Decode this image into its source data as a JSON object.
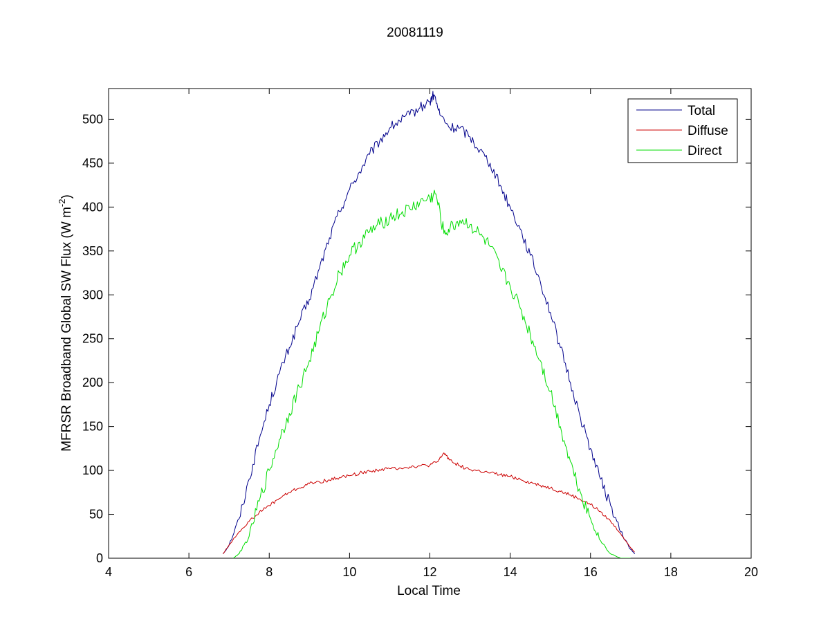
{
  "chart_data": {
    "type": "line",
    "title": "20081119",
    "xlabel": "Local Time",
    "ylabel": {
      "main": "MFRSR Broadband Global SW Flux (W m",
      "superscript": "-2",
      "close": ")"
    },
    "xlim": [
      4,
      20
    ],
    "ylim": [
      0,
      535
    ],
    "xticks": [
      4,
      6,
      8,
      10,
      12,
      14,
      16,
      18,
      20
    ],
    "yticks": [
      0,
      50,
      100,
      150,
      200,
      250,
      300,
      350,
      400,
      450,
      500
    ],
    "grid": false,
    "legend_position": "top-right",
    "series": [
      {
        "name": "Total",
        "color": "#00008b",
        "x": [
          6.85,
          7.0,
          7.25,
          7.5,
          7.75,
          8.0,
          8.25,
          8.5,
          8.75,
          9.0,
          9.25,
          9.5,
          9.75,
          10.0,
          10.25,
          10.5,
          10.75,
          11.0,
          11.25,
          11.5,
          11.75,
          12.0,
          12.1,
          12.25,
          12.5,
          12.75,
          13.0,
          13.25,
          13.5,
          13.75,
          14.0,
          14.25,
          14.5,
          14.75,
          15.0,
          15.25,
          15.5,
          15.75,
          16.0,
          16.25,
          16.5,
          16.75,
          17.0,
          17.1
        ],
        "y": [
          5,
          15,
          45,
          90,
          135,
          175,
          210,
          240,
          270,
          295,
          330,
          365,
          395,
          420,
          440,
          460,
          475,
          490,
          498,
          505,
          513,
          520,
          528,
          505,
          490,
          490,
          480,
          465,
          450,
          425,
          400,
          375,
          345,
          315,
          280,
          240,
          200,
          160,
          125,
          90,
          60,
          30,
          10,
          5
        ],
        "jitter": 6
      },
      {
        "name": "Diffuse",
        "color": "#cc0000",
        "x": [
          6.85,
          7.0,
          7.25,
          7.5,
          7.75,
          8.0,
          8.25,
          8.5,
          8.75,
          9.0,
          9.25,
          9.5,
          9.75,
          10.0,
          10.25,
          10.5,
          10.75,
          11.0,
          11.25,
          11.5,
          11.75,
          12.0,
          12.2,
          12.35,
          12.5,
          12.75,
          13.0,
          13.25,
          13.5,
          13.75,
          14.0,
          14.25,
          14.5,
          14.75,
          15.0,
          15.25,
          15.5,
          15.75,
          16.0,
          16.25,
          16.5,
          16.75,
          17.0,
          17.1
        ],
        "y": [
          5,
          15,
          30,
          42,
          52,
          60,
          68,
          75,
          80,
          85,
          87,
          89,
          92,
          94,
          97,
          99,
          101,
          102,
          103,
          104,
          105,
          106,
          110,
          120,
          112,
          105,
          101,
          99,
          97,
          95,
          93,
          90,
          86,
          83,
          80,
          76,
          72,
          67,
          61,
          53,
          42,
          28,
          12,
          7
        ],
        "jitter": 2
      },
      {
        "name": "Direct",
        "color": "#00dd00",
        "x": [
          7.1,
          7.25,
          7.5,
          7.75,
          8.0,
          8.25,
          8.5,
          8.75,
          9.0,
          9.25,
          9.5,
          9.75,
          10.0,
          10.25,
          10.5,
          10.75,
          11.0,
          11.25,
          11.5,
          11.75,
          12.0,
          12.15,
          12.35,
          12.5,
          12.75,
          13.0,
          13.25,
          13.5,
          13.75,
          14.0,
          14.25,
          14.5,
          14.75,
          15.0,
          15.25,
          15.5,
          15.75,
          16.0,
          16.25,
          16.5,
          16.75,
          16.9,
          17.0
        ],
        "y": [
          0,
          5,
          25,
          65,
          100,
          135,
          165,
          195,
          225,
          260,
          295,
          325,
          345,
          360,
          372,
          380,
          388,
          392,
          398,
          405,
          410,
          415,
          370,
          375,
          385,
          380,
          368,
          355,
          330,
          310,
          285,
          255,
          225,
          190,
          150,
          110,
          75,
          45,
          20,
          5,
          0,
          0,
          0
        ],
        "jitter": 8
      }
    ]
  }
}
